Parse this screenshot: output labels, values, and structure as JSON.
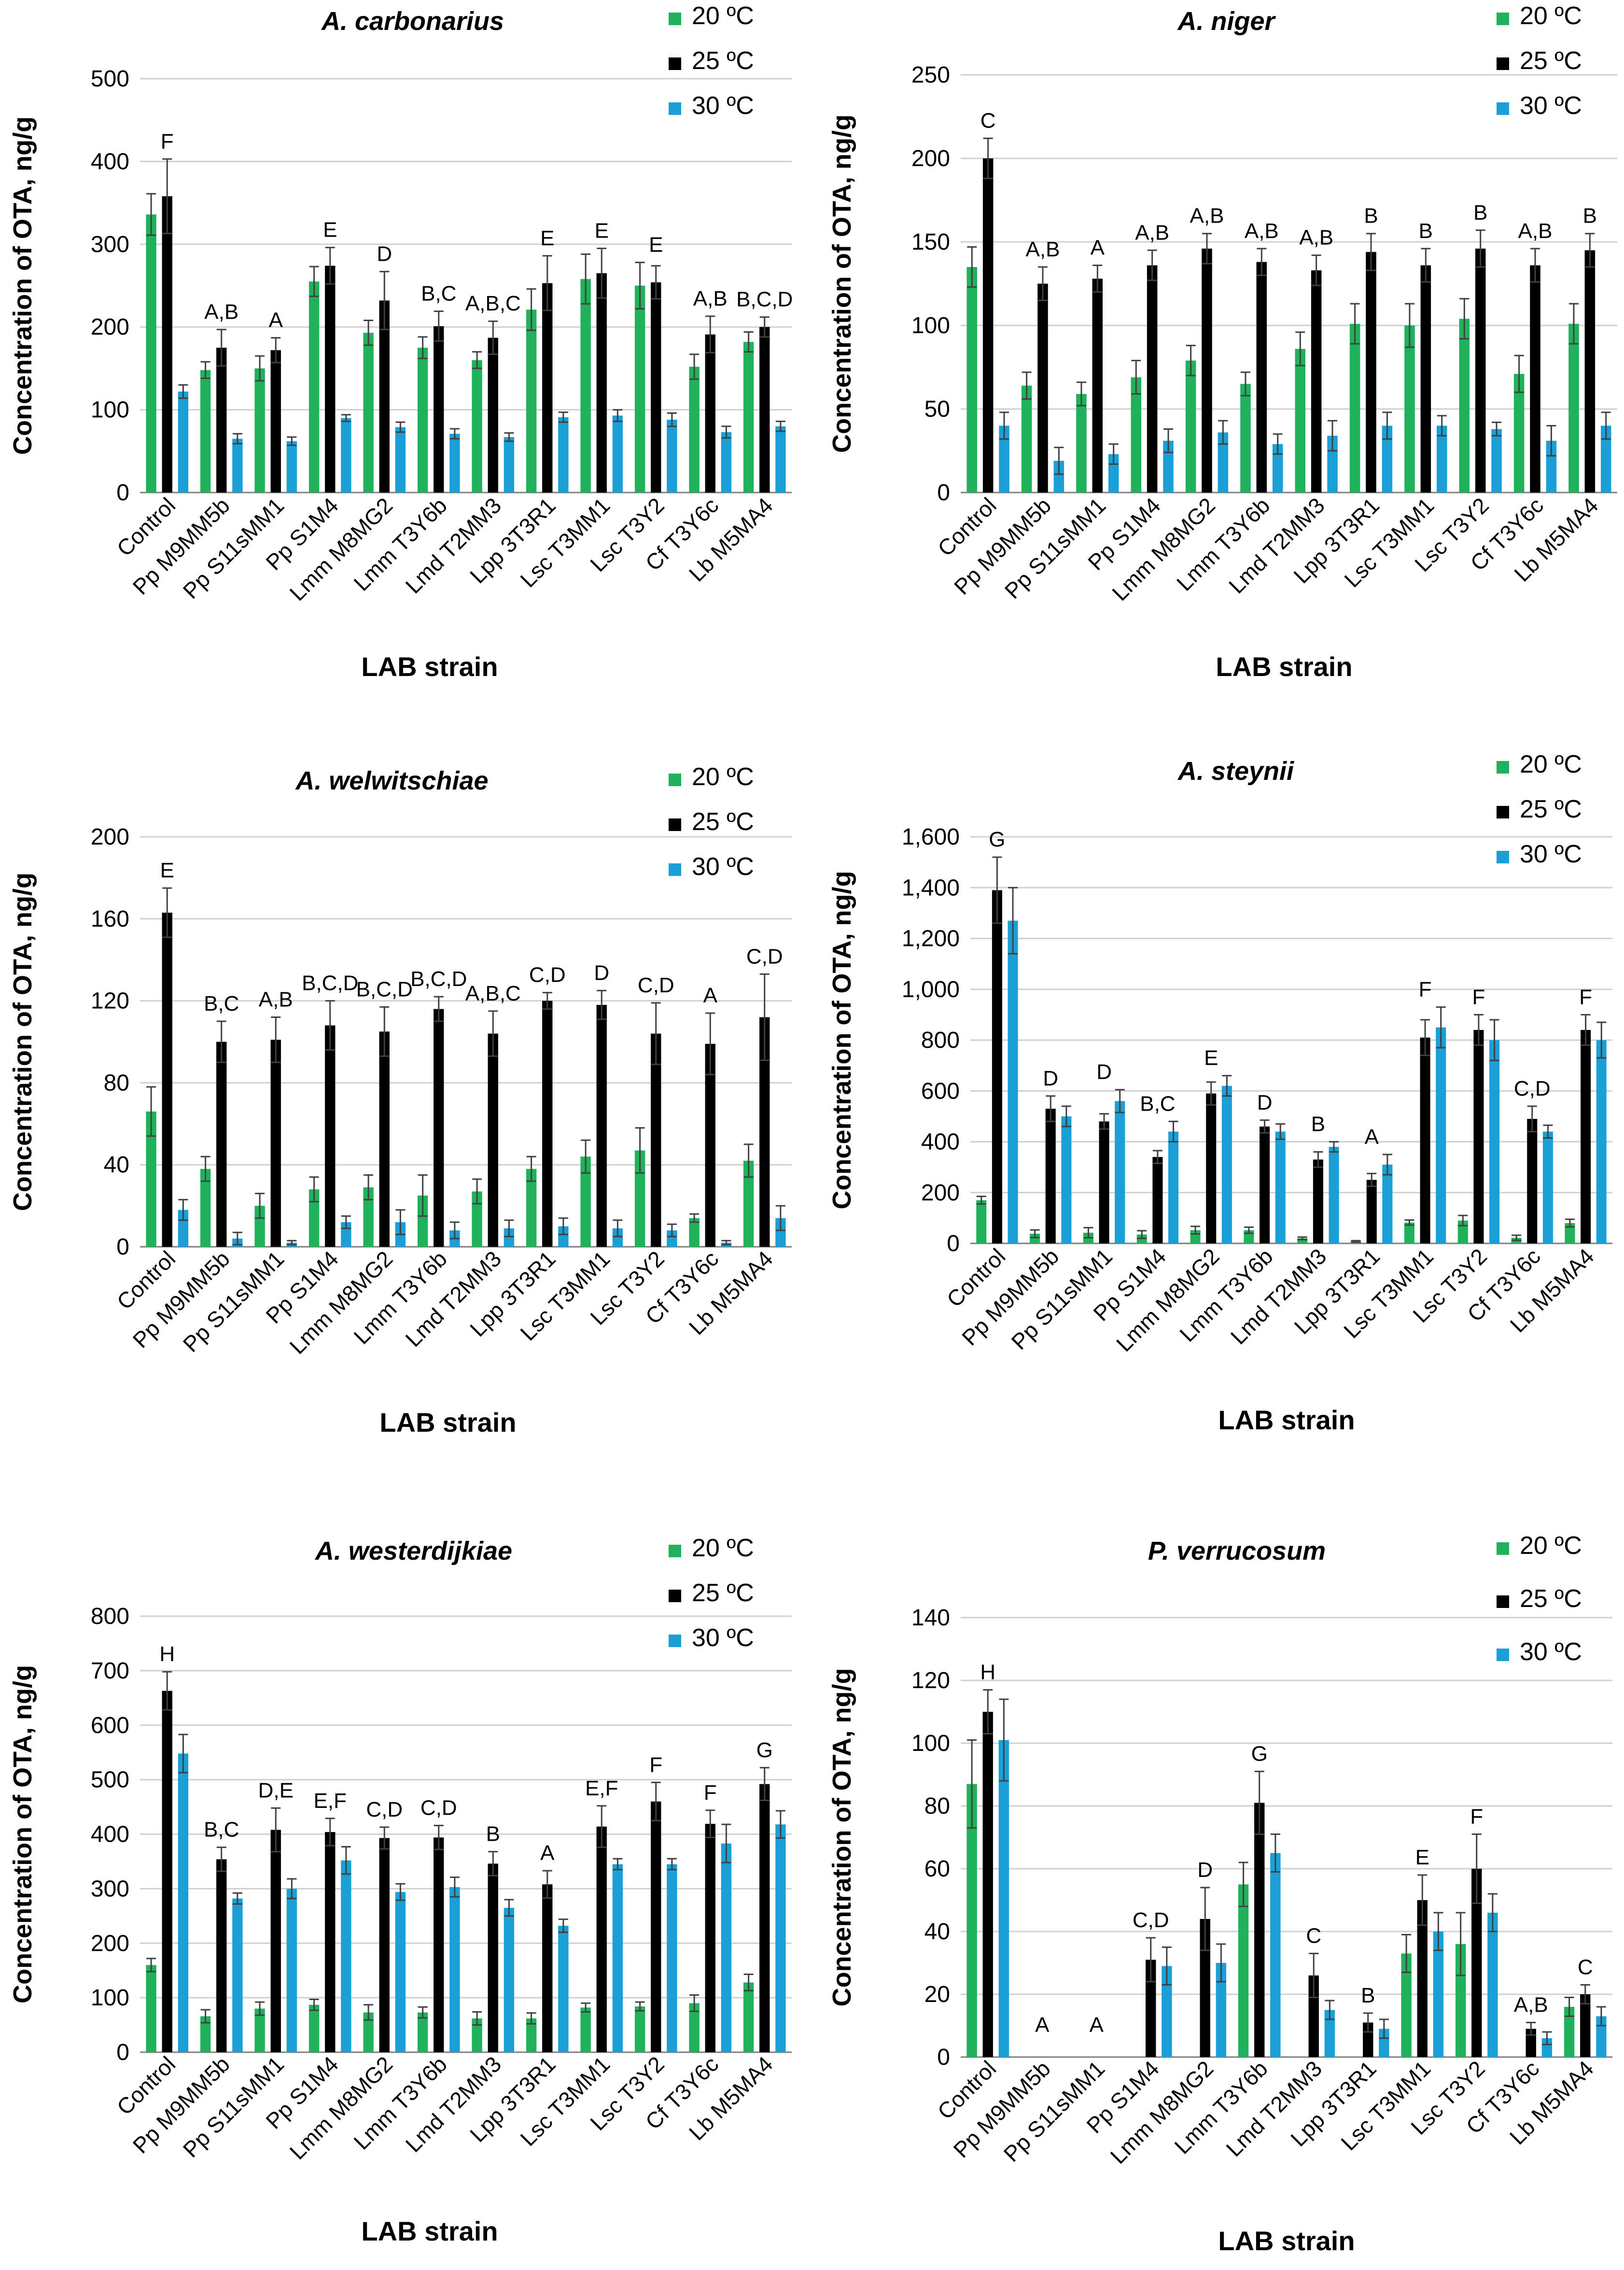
{
  "colors": {
    "c20": "#1fb25a",
    "c25": "#000000",
    "c30": "#1a9fd6",
    "grid": "#d0d0d0",
    "axis": "#7f7f7f",
    "err": "#404040"
  },
  "chart_data": [
    {
      "type": "bar",
      "title": "A. carbonarius",
      "ylabel": "Concentration of OTA, ng/g",
      "xlabel": "LAB strain",
      "ylim": [
        0,
        500
      ],
      "yticks": [
        0,
        100,
        200,
        300,
        400,
        500
      ],
      "tick_labels": [
        "0",
        "100",
        "200",
        "300",
        "400",
        "500"
      ],
      "categories": [
        "Control",
        "Pp M9MM5b",
        "Pp S11sMM1",
        "Pp S1M4",
        "Lmm M8MG2",
        "Lmm T3Y6b",
        "Lmd T2MM3",
        "Lpp 3T3R1",
        "Lsc T3MM1",
        "Lsc T3Y2",
        "Cf T3Y6c",
        "Lb M5MA4"
      ],
      "series": [
        {
          "name": "20 ºC",
          "values": [
            336,
            148,
            150,
            255,
            193,
            175,
            160,
            221,
            258,
            250,
            152,
            182
          ],
          "errors": [
            25,
            10,
            15,
            18,
            15,
            13,
            10,
            25,
            30,
            28,
            15,
            12
          ]
        },
        {
          "name": "25 ºC",
          "values": [
            358,
            175,
            172,
            274,
            232,
            201,
            187,
            253,
            265,
            254,
            191,
            200
          ],
          "errors": [
            45,
            22,
            15,
            22,
            35,
            18,
            20,
            33,
            30,
            20,
            22,
            12
          ]
        },
        {
          "name": "30 ºC",
          "values": [
            122,
            65,
            62,
            90,
            79,
            71,
            67,
            91,
            93,
            88,
            73,
            80
          ],
          "errors": [
            8,
            6,
            5,
            4,
            6,
            6,
            5,
            6,
            7,
            8,
            7,
            6
          ]
        }
      ],
      "sig_labels": [
        "F",
        "A,B",
        "A",
        "E",
        "D",
        "B,C",
        "A,B,C",
        "E",
        "E",
        "E",
        "A,B",
        "B,C,D"
      ]
    },
    {
      "type": "bar",
      "title": "A. niger",
      "ylabel": "Concentration of OTA, ng/g",
      "xlabel": "LAB strain",
      "ylim": [
        0,
        250
      ],
      "yticks": [
        0,
        50,
        100,
        150,
        200,
        250
      ],
      "tick_labels": [
        "0",
        "50",
        "100",
        "150",
        "200",
        "250"
      ],
      "categories": [
        "Control",
        "Pp M9MM5b",
        "Pp S11sMM1",
        "Pp S1M4",
        "Lmm M8MG2",
        "Lmm T3Y6b",
        "Lmd T2MM3",
        "Lpp 3T3R1",
        "Lsc T3MM1",
        "Lsc T3Y2",
        "Cf T3Y6c",
        "Lb M5MA4"
      ],
      "series": [
        {
          "name": "20 ºC",
          "values": [
            135,
            64,
            59,
            69,
            79,
            65,
            86,
            101,
            100,
            104,
            71,
            101
          ],
          "errors": [
            12,
            8,
            7,
            10,
            9,
            7,
            10,
            12,
            13,
            12,
            11,
            12
          ]
        },
        {
          "name": "25 ºC",
          "values": [
            200,
            125,
            128,
            136,
            146,
            138,
            133,
            144,
            136,
            146,
            136,
            145
          ],
          "errors": [
            12,
            10,
            8,
            9,
            9,
            8,
            9,
            11,
            10,
            11,
            10,
            10
          ]
        },
        {
          "name": "30 ºC",
          "values": [
            40,
            19,
            23,
            31,
            36,
            29,
            34,
            40,
            40,
            38,
            31,
            40
          ],
          "errors": [
            8,
            8,
            6,
            7,
            7,
            6,
            9,
            8,
            6,
            4,
            9,
            8
          ]
        }
      ],
      "sig_labels": [
        "C",
        "A,B",
        "A",
        "A,B",
        "A,B",
        "A,B",
        "A,B",
        "B",
        "B",
        "B",
        "A,B",
        "B"
      ]
    },
    {
      "type": "bar",
      "title": "A. welwitschiae",
      "ylabel": "Concentration of OTA, ng/g",
      "xlabel": "LAB strain",
      "ylim": [
        0,
        200
      ],
      "yticks": [
        0,
        40,
        80,
        120,
        160,
        200
      ],
      "tick_labels": [
        "0",
        "40",
        "80",
        "120",
        "160",
        "200"
      ],
      "categories": [
        "Control",
        "Pp M9MM5b",
        "Pp S11sMM1",
        "Pp S1M4",
        "Lmm M8MG2",
        "Lmm T3Y6b",
        "Lmd T2MM3",
        "Lpp 3T3R1",
        "Lsc T3MM1",
        "Lsc T3Y2",
        "Cf T3Y6c",
        "Lb M5MA4"
      ],
      "series": [
        {
          "name": "20 ºC",
          "values": [
            66,
            38,
            20,
            28,
            29,
            25,
            27,
            38,
            44,
            47,
            14,
            42
          ],
          "errors": [
            12,
            6,
            6,
            6,
            6,
            10,
            6,
            6,
            8,
            11,
            2,
            8
          ]
        },
        {
          "name": "25 ºC",
          "values": [
            163,
            100,
            101,
            108,
            105,
            116,
            104,
            120,
            118,
            104,
            99,
            112
          ],
          "errors": [
            12,
            10,
            11,
            12,
            12,
            6,
            11,
            4,
            7,
            15,
            15,
            21
          ]
        },
        {
          "name": "30 ºC",
          "values": [
            18,
            4,
            2,
            12,
            12,
            8,
            9,
            10,
            9,
            8,
            2,
            14
          ],
          "errors": [
            5,
            3,
            1,
            3,
            6,
            4,
            4,
            4,
            4,
            3,
            1,
            6
          ]
        }
      ],
      "sig_labels": [
        "E",
        "B,C",
        "A,B",
        "B,C,D",
        "B,C,D",
        "B,C,D",
        "A,B,C",
        "C,D",
        "D",
        "C,D",
        "A",
        "C,D"
      ]
    },
    {
      "type": "bar",
      "title": "A. steynii",
      "ylabel": "Concentration of OTA, ng/g",
      "xlabel": "LAB strain",
      "ylim": [
        0,
        1600
      ],
      "yticks": [
        0,
        200,
        400,
        600,
        800,
        1000,
        1200,
        1400,
        1600
      ],
      "tick_labels": [
        "0",
        "200",
        "400",
        "600",
        "800",
        "1,000",
        "1,200",
        "1,400",
        "1,600"
      ],
      "categories": [
        "Control",
        "Pp M9MM5b",
        "Pp S11sMM1",
        "Pp S1M4",
        "Lmm M8MG2",
        "Lmm T3Y6b",
        "Lmd T2MM3",
        "Lpp 3T3R1",
        "Lsc T3MM1",
        "Lsc T3Y2",
        "Cf T3Y6c",
        "Lb M5MA4"
      ],
      "series": [
        {
          "name": "20 ºC",
          "values": [
            170,
            38,
            42,
            35,
            52,
            52,
            20,
            8,
            82,
            90,
            22,
            80
          ],
          "errors": [
            15,
            15,
            20,
            15,
            15,
            12,
            5,
            3,
            10,
            20,
            10,
            15
          ]
        },
        {
          "name": "25 ºC",
          "values": [
            1390,
            530,
            480,
            340,
            590,
            460,
            330,
            250,
            810,
            840,
            490,
            840
          ],
          "errors": [
            130,
            50,
            30,
            25,
            45,
            25,
            30,
            25,
            70,
            60,
            50,
            60
          ]
        },
        {
          "name": "30 ºC",
          "values": [
            1270,
            500,
            560,
            440,
            620,
            440,
            380,
            310,
            850,
            800,
            440,
            800
          ],
          "errors": [
            130,
            40,
            45,
            40,
            40,
            30,
            20,
            40,
            80,
            80,
            25,
            70
          ]
        }
      ],
      "sig_labels": [
        "G",
        "D",
        "D",
        "B,C",
        "E",
        "D",
        "B",
        "A",
        "F",
        "F",
        "C,D",
        "F"
      ]
    },
    {
      "type": "bar",
      "title": "A. westerdijkiae",
      "ylabel": "Concentration of OTA, ng/g",
      "xlabel": "LAB strain",
      "ylim": [
        0,
        800
      ],
      "yticks": [
        0,
        100,
        200,
        300,
        400,
        500,
        600,
        700,
        800
      ],
      "tick_labels": [
        "0",
        "100",
        "200",
        "300",
        "400",
        "500",
        "600",
        "700",
        "800"
      ],
      "categories": [
        "Control",
        "Pp M9MM5b",
        "Pp S11sMM1",
        "Pp S1M4",
        "Lmm M8MG2",
        "Lmm T3Y6b",
        "Lmd T2MM3",
        "Lpp 3T3R1",
        "Lsc T3MM1",
        "Lsc T3Y2",
        "Cf T3Y6c",
        "Lb M5MA4"
      ],
      "series": [
        {
          "name": "20 ºC",
          "values": [
            160,
            66,
            80,
            87,
            73,
            73,
            62,
            62,
            82,
            84,
            90,
            128
          ],
          "errors": [
            12,
            12,
            12,
            10,
            14,
            10,
            12,
            10,
            8,
            8,
            15,
            15
          ]
        },
        {
          "name": "25 ºC",
          "values": [
            663,
            354,
            408,
            404,
            393,
            394,
            346,
            308,
            414,
            460,
            419,
            492
          ],
          "errors": [
            35,
            22,
            40,
            25,
            20,
            22,
            22,
            25,
            38,
            35,
            25,
            30
          ]
        },
        {
          "name": "30 ºC",
          "values": [
            548,
            282,
            300,
            352,
            294,
            303,
            265,
            232,
            345,
            345,
            383,
            418
          ],
          "errors": [
            35,
            10,
            18,
            25,
            15,
            18,
            15,
            12,
            10,
            10,
            35,
            25
          ]
        }
      ],
      "sig_labels": [
        "H",
        "B,C",
        "D,E",
        "E,F",
        "C,D",
        "C,D",
        "B",
        "A",
        "E,F",
        "F",
        "F",
        "G"
      ]
    },
    {
      "type": "bar",
      "title": "P. verrucosum",
      "ylabel": "Concentration of OTA, ng/g",
      "xlabel": "LAB strain",
      "ylim": [
        0,
        140
      ],
      "yticks": [
        0,
        20,
        40,
        60,
        80,
        100,
        120,
        140
      ],
      "tick_labels": [
        "0",
        "20",
        "40",
        "60",
        "80",
        "100",
        "120",
        "140"
      ],
      "categories": [
        "Control",
        "Pp M9MM5b",
        "Pp S11sMM1",
        "Pp S1M4",
        "Lmm M8MG2",
        "Lmm T3Y6b",
        "Lmd T2MM3",
        "Lpp 3T3R1",
        "Lsc T3MM1",
        "Lsc T3Y2",
        "Cf T3Y6c",
        "Lb M5MA4"
      ],
      "series": [
        {
          "name": "20 ºC",
          "values": [
            87,
            0,
            0,
            0,
            0,
            55,
            0,
            0,
            33,
            36,
            0,
            16
          ],
          "errors": [
            14,
            0,
            0,
            0,
            0,
            7,
            0,
            0,
            6,
            10,
            0,
            3
          ]
        },
        {
          "name": "25 ºC",
          "values": [
            110,
            0,
            0,
            31,
            44,
            81,
            26,
            11,
            50,
            60,
            9,
            20
          ],
          "errors": [
            7,
            0,
            0,
            7,
            10,
            10,
            7,
            3,
            8,
            11,
            2,
            3
          ]
        },
        {
          "name": "30 ºC",
          "values": [
            101,
            0,
            0,
            29,
            30,
            65,
            15,
            9,
            40,
            46,
            6,
            13
          ],
          "errors": [
            13,
            0,
            0,
            6,
            6,
            6,
            3,
            3,
            6,
            6,
            2,
            3
          ]
        }
      ],
      "sig_labels": [
        "H",
        "A",
        "A",
        "C,D",
        "D",
        "G",
        "C",
        "B",
        "E",
        "F",
        "A,B",
        "C"
      ]
    }
  ]
}
